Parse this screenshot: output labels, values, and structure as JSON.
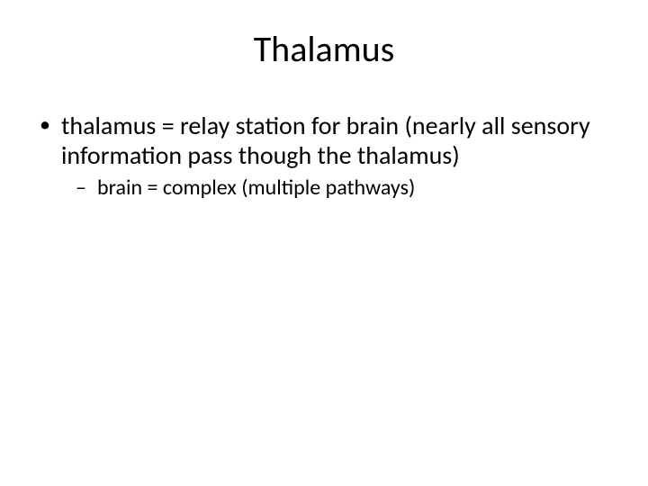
{
  "slide": {
    "title": "Thalamus",
    "bullets": [
      {
        "text": "thalamus = relay station for brain (nearly all sensory information pass though the thalamus)",
        "children": [
          {
            "text": "brain = complex (multiple pathways)"
          }
        ]
      }
    ]
  },
  "style": {
    "background_color": "#ffffff",
    "text_color": "#000000",
    "title_fontsize": 40,
    "body_fontsize": 28,
    "sub_fontsize": 24,
    "font_family": "Calibri"
  }
}
